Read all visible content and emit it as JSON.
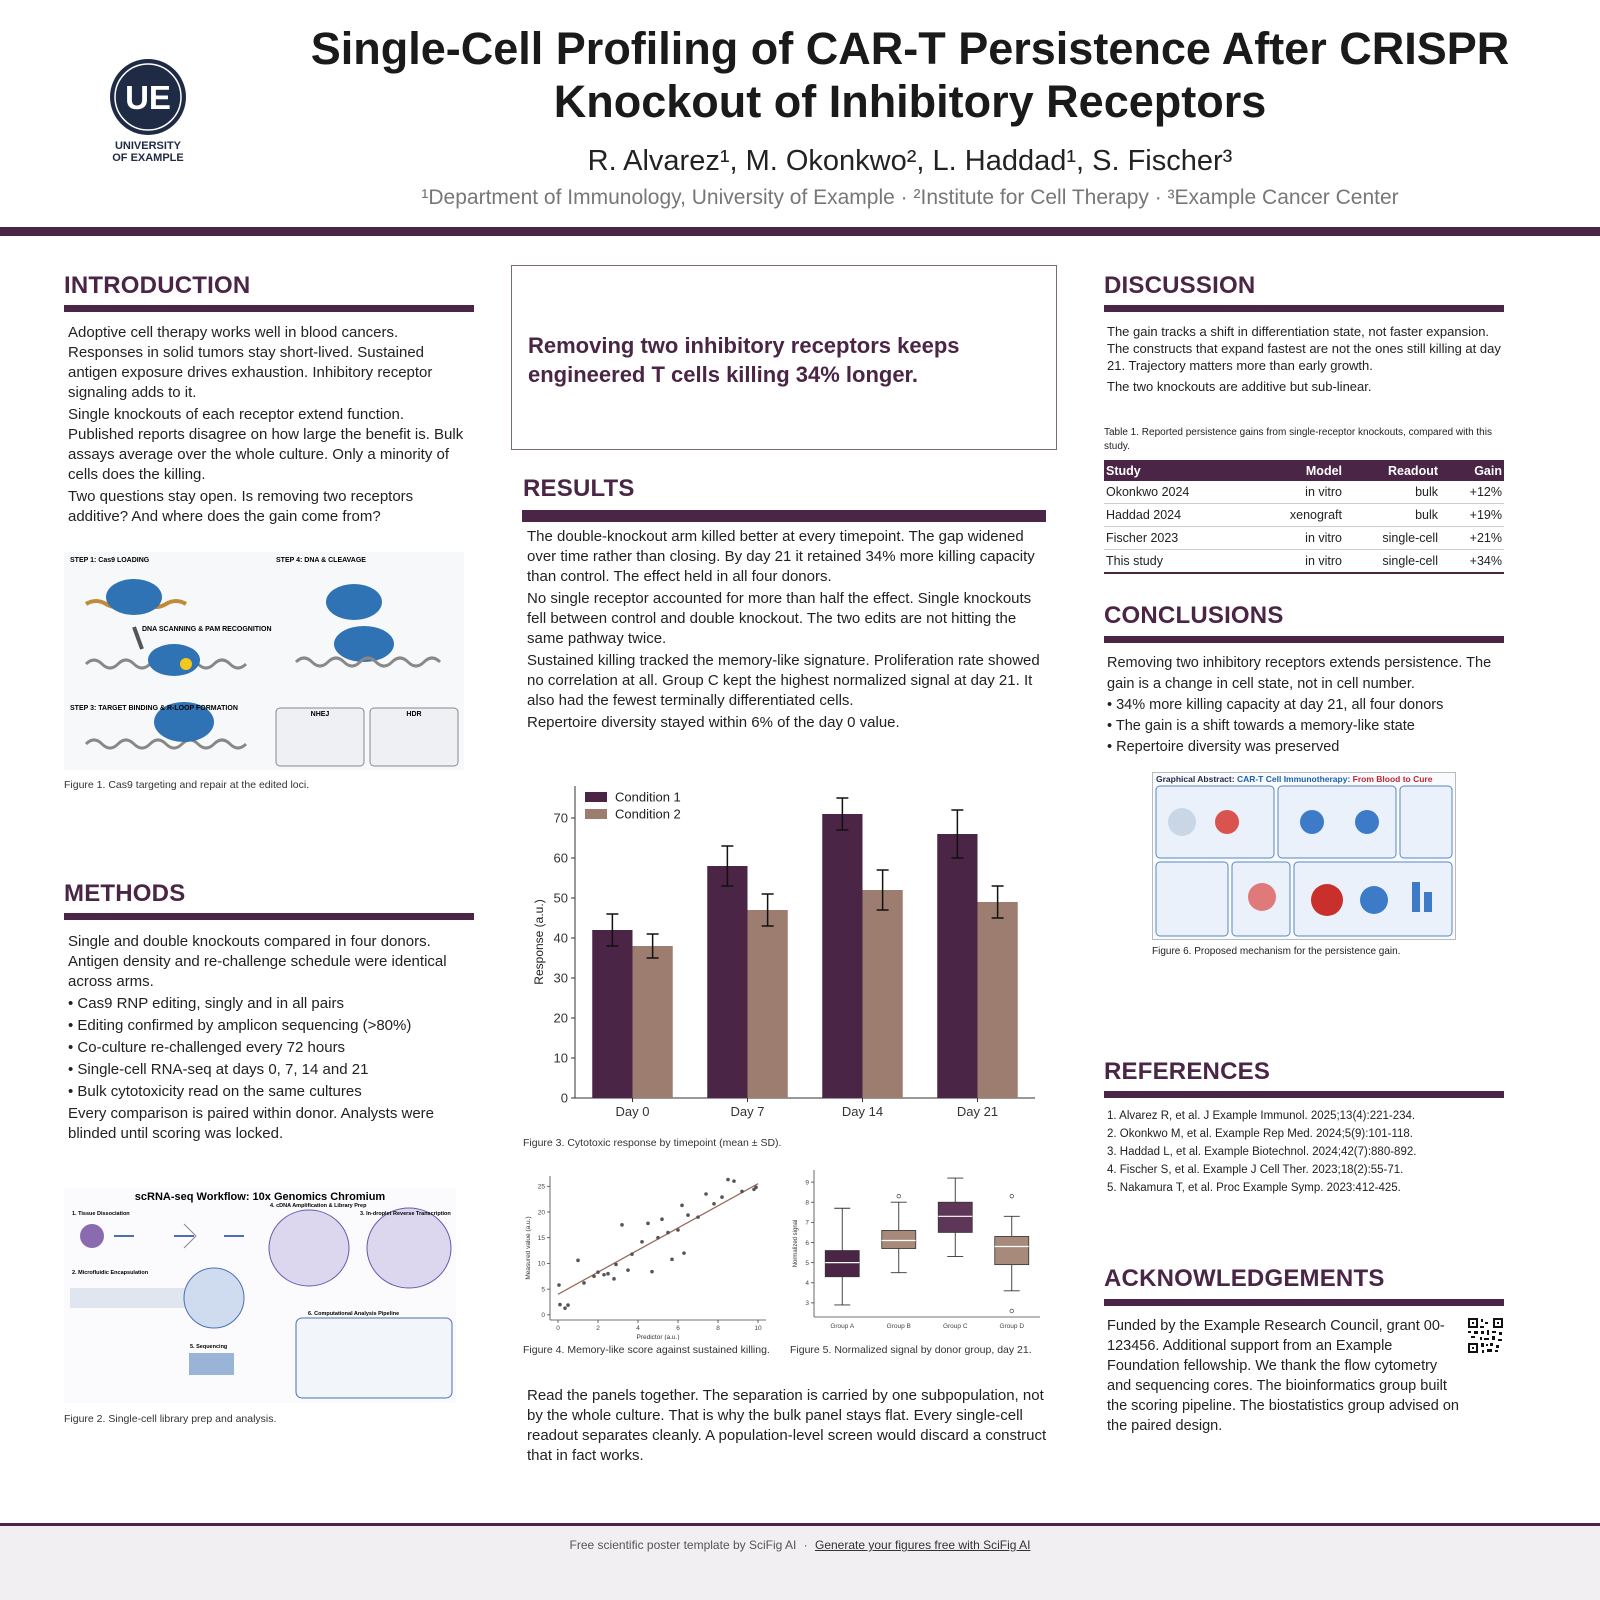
{
  "header": {
    "logo_initials": "UE",
    "logo_lines": [
      "UNIVERSITY",
      "OF EXAMPLE"
    ],
    "title": "Single-Cell Profiling of CAR-T Persistence After CRISPR Knockout of Inhibitory Receptors",
    "authors": "R. Alvarez¹, M. Okonkwo², L. Haddad¹, S. Fischer³",
    "affiliations": "¹Department of Immunology, University of Example · ²Institute for Cell Therapy · ³Example Cancer Center"
  },
  "introduction": {
    "heading": "INTRODUCTION",
    "paragraphs": [
      "Adoptive cell therapy works well in blood cancers. Responses in solid tumors stay short-lived. Sustained antigen exposure drives exhaustion. Inhibitory receptor signaling adds to it.",
      "Single knockouts of each receptor extend function. Published reports disagree on how large the benefit is. Bulk assays average over the whole culture. Only a minority of cells does the killing.",
      "Two questions stay open. Is removing two receptors additive? And where does the gain come from?"
    ]
  },
  "figure1": {
    "labels": [
      "STEP 1: Cas9 LOADING",
      "STEP 4: DNA & CLEAVAGE",
      "DNA SCANNING & PAM RECOGNITION",
      "STEP 3: TARGET BINDING & R-LOOP FORMATION",
      "NHEJ",
      "HDR"
    ],
    "caption": "Figure 1. Cas9 targeting and repair at the edited loci."
  },
  "methods": {
    "heading": "METHODS",
    "items": [
      "Single and double knockouts compared in four donors. Antigen density and re-challenge schedule were identical across arms.",
      "• Cas9 RNP editing, singly and in all pairs",
      "• Editing confirmed by amplicon sequencing (>80%)",
      "• Co-culture re-challenged every 72 hours",
      "• Single-cell RNA-seq at days 0, 7, 14 and 21",
      "• Bulk cytotoxicity read on the same cultures",
      "Every comparison is paired within donor. Analysts were blinded until scoring was locked."
    ]
  },
  "figure2": {
    "title": "scRNA-seq Workflow: 10x Genomics Chromium",
    "steps": [
      "1. Tissue Dissociation",
      "2. Microfluidic Encapsulation",
      "3. In-droplet Reverse Transcription",
      "4. cDNA Amplification & Library Prep",
      "5. Sequencing",
      "6. Computational Analysis Pipeline"
    ],
    "caption": "Figure 2. Single-cell library prep and analysis."
  },
  "highlight": "Removing two inhibitory receptors keeps engineered T cells killing 34% longer.",
  "results": {
    "heading": "RESULTS",
    "paragraphs": [
      "The double-knockout arm killed better at every timepoint. The gap widened over time rather than closing. By day 21 it retained 34% more killing capacity than control. The effect held in all four donors.",
      "No single receptor accounted for more than half the effect. Single knockouts fell between control and double knockout. The two edits are not hitting the same pathway twice.",
      "Sustained killing tracked the memory-like signature. Proliferation rate showed no correlation at all. Group C kept the highest normalized signal at day 21. It also had the fewest terminally differentiated cells.",
      "Repertoire diversity stayed within 6% of the day 0 value."
    ],
    "closing": "Read the panels together. The separation is carried by one subpopulation, not by the whole culture. That is why the bulk panel stays flat. Every single-cell readout separates cleanly. A population-level screen would discard a construct that in fact works."
  },
  "chart_data": [
    {
      "type": "bar",
      "categories": [
        "Day 0",
        "Day 7",
        "Day 14",
        "Day 21"
      ],
      "series": [
        {
          "name": "Condition 1",
          "color": "#4a2545",
          "values": [
            42,
            58,
            71,
            66
          ],
          "errors": [
            4,
            5,
            4,
            6
          ]
        },
        {
          "name": "Condition 2",
          "color": "#9c7d6f",
          "values": [
            38,
            47,
            52,
            49
          ],
          "errors": [
            3,
            4,
            5,
            4
          ]
        }
      ],
      "ylabel": "Response (a.u.)",
      "ylim": [
        0,
        78
      ],
      "yticks": [
        0,
        10,
        20,
        30,
        40,
        50,
        60,
        70
      ],
      "legend": "upper left",
      "caption": "Figure 3. Cytotoxic response by timepoint (mean ± SD)."
    },
    {
      "type": "scatter",
      "x": [
        0.05,
        0.1,
        0.35,
        0.5,
        1.0,
        1.3,
        1.8,
        2.0,
        2.3,
        2.5,
        2.8,
        2.9,
        3.2,
        3.5,
        3.7,
        4.2,
        4.5,
        4.7,
        5.0,
        5.2,
        5.5,
        5.7,
        6.0,
        6.2,
        6.3,
        6.5,
        7.0,
        7.4,
        7.8,
        8.2,
        8.5,
        8.8,
        9.2,
        9.8,
        9.9
      ],
      "y": [
        5.8,
        2.0,
        1.3,
        1.9,
        10.6,
        6.2,
        7.5,
        8.3,
        7.8,
        8.0,
        7.0,
        9.8,
        17.5,
        8.7,
        11.8,
        14.2,
        17.8,
        8.4,
        15.0,
        18.6,
        16.0,
        10.8,
        16.5,
        21.3,
        12.0,
        19.4,
        19.0,
        23.5,
        21.6,
        22.9,
        26.3,
        26.0,
        24.0,
        24.4,
        24.8
      ],
      "color": "#555555",
      "trend": {
        "x": [
          0,
          10
        ],
        "y": [
          4,
          25.5
        ],
        "color": "#9c6a5e"
      },
      "xlabel": "Predictor (a.u.)",
      "ylabel": "Measured value (a.u.)",
      "xlim": [
        -0.4,
        10.4
      ],
      "ylim": [
        -1,
        27
      ],
      "xticks": [
        0,
        2,
        4,
        6,
        8,
        10
      ],
      "yticks": [
        0,
        5,
        10,
        15,
        20,
        25
      ],
      "caption": "Figure 4. Memory-like score against sustained killing."
    },
    {
      "type": "box",
      "groups": [
        {
          "name": "Group A",
          "color": "#4a2545",
          "min": 2.9,
          "q1": 4.3,
          "median": 5.0,
          "q3": 5.6,
          "max": 7.7,
          "outliers": []
        },
        {
          "name": "Group B",
          "color": "#a88a7a",
          "min": 4.5,
          "q1": 5.7,
          "median": 6.1,
          "q3": 6.6,
          "max": 8.0,
          "outliers": [
            8.3
          ]
        },
        {
          "name": "Group C",
          "color": "#5e3657",
          "min": 5.3,
          "q1": 6.5,
          "median": 7.3,
          "q3": 8.0,
          "max": 9.2,
          "outliers": []
        },
        {
          "name": "Group D",
          "color": "#a88a7a",
          "min": 3.6,
          "q1": 4.9,
          "median": 5.8,
          "q3": 6.3,
          "max": 7.3,
          "outliers": [
            8.3,
            2.6
          ]
        }
      ],
      "ylabel": "Normalized signal",
      "ylim": [
        2.3,
        9.6
      ],
      "yticks": [
        3,
        4,
        5,
        6,
        7,
        8,
        9
      ],
      "caption": "Figure 5. Normalized signal by donor group, day 21."
    }
  ],
  "discussion": {
    "heading": "DISCUSSION",
    "paragraphs": [
      "The gain tracks a shift in differentiation state, not faster expansion. The constructs that expand fastest are not the ones still killing at day 21. Trajectory matters more than early growth.",
      "The two knockouts are additive but sub-linear."
    ],
    "table": {
      "caption": "Table 1. Reported persistence gains from single-receptor knockouts, compared with this study.",
      "columns": [
        "Study",
        "Model",
        "Readout",
        "Gain"
      ],
      "rows": [
        [
          "Okonkwo 2024",
          "in vitro",
          "bulk",
          "+12%"
        ],
        [
          "Haddad 2024",
          "xenograft",
          "bulk",
          "+19%"
        ],
        [
          "Fischer 2023",
          "in vitro",
          "single-cell",
          "+21%"
        ],
        [
          "This study",
          "in vitro",
          "single-cell",
          "+34%"
        ]
      ]
    }
  },
  "conclusions": {
    "heading": "CONCLUSIONS",
    "items": [
      "Removing two inhibitory receptors extends persistence. The gain is a change in cell state, not in cell number.",
      "• 34% more killing capacity at day 21, all four donors",
      "• The gain is a shift towards a memory-like state",
      "• Repertoire diversity was preserved"
    ]
  },
  "figure6": {
    "title_parts": [
      "Graphical Abstract: ",
      "CAR-T Cell Immunotherapy: ",
      "From Blood to Cure"
    ],
    "caption": "Figure 6. Proposed mechanism for the persistence gain."
  },
  "references": {
    "heading": "REFERENCES",
    "items": [
      "1. Alvarez R, et al. J Example Immunol. 2025;13(4):221-234.",
      "2. Okonkwo M, et al. Example Rep Med. 2024;5(9):101-118.",
      "3. Haddad L, et al. Example Biotechnol. 2024;42(7):880-892.",
      "4. Fischer S, et al. Example J Cell Ther. 2023;18(2):55-71.",
      "5. Nakamura T, et al. Proc Example Symp. 2023:412-425."
    ]
  },
  "acknowledgements": {
    "heading": "ACKNOWLEDGEMENTS",
    "text": "Funded by the Example Research Council, grant 00-123456. Additional support from an Example Foundation fellowship. We thank the flow cytometry and sequencing cores. The bioinformatics group built the scoring pipeline. The biostatistics group advised on the paired design."
  },
  "footer": {
    "text": "Free scientific poster template by SciFig AI",
    "separator": "·",
    "link": "Generate your figures free with SciFig AI"
  }
}
